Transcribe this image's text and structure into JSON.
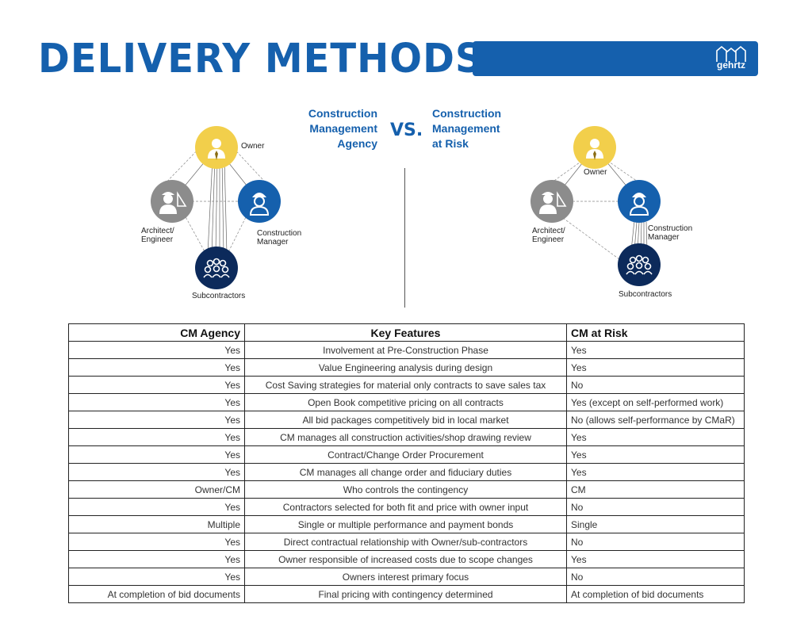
{
  "header": {
    "title": "DELIVERY METHODS",
    "logo_text": "gehrtz",
    "brand_color": "#1560ad"
  },
  "comparison": {
    "left_heading": [
      "Construction",
      "Management",
      "Agency"
    ],
    "vs": "VS.",
    "right_heading": [
      "Construction",
      "Management",
      "at Risk"
    ]
  },
  "left_diagram": {
    "owner": "Owner",
    "architect": [
      "Architect/",
      "Engineer"
    ],
    "cm": [
      "Construction",
      "Manager"
    ],
    "subs": "Subcontractors"
  },
  "right_diagram": {
    "owner": "Owner",
    "architect": [
      "Architect/",
      "Engineer"
    ],
    "cm": [
      "Construction",
      "Manager"
    ],
    "subs": "Subcontractors"
  },
  "colors": {
    "owner": "#f2cf4b",
    "architect": "#8c8c8c",
    "cm": "#1560ad",
    "subs": "#0c2a5b"
  },
  "table": {
    "headers": [
      "CM Agency",
      "Key Features",
      "CM at Risk"
    ],
    "rows": [
      [
        "Yes",
        "Involvement at Pre-Construction Phase",
        "Yes"
      ],
      [
        "Yes",
        "Value Engineering analysis during design",
        "Yes"
      ],
      [
        "Yes",
        "Cost Saving strategies for material only contracts to save sales tax",
        "No"
      ],
      [
        "Yes",
        "Open Book competitive pricing on all contracts",
        "Yes (except on self-performed work)"
      ],
      [
        "Yes",
        "All bid packages competitively bid in local market",
        "No (allows self-performance by CMaR)"
      ],
      [
        "Yes",
        "CM manages all construction activities/shop drawing review",
        "Yes"
      ],
      [
        "Yes",
        "Contract/Change Order Procurement",
        "Yes"
      ],
      [
        "Yes",
        "CM manages all change order and fiduciary duties",
        "Yes"
      ],
      [
        "Owner/CM",
        "Who controls the contingency",
        "CM"
      ],
      [
        "Yes",
        "Contractors selected for both fit and price with owner input",
        "No"
      ],
      [
        "Multiple",
        "Single or multiple performance and payment bonds",
        "Single"
      ],
      [
        "Yes",
        "Direct contractual relationship with Owner/sub-contractors",
        "No"
      ],
      [
        "Yes",
        "Owner responsible of increased costs due to scope changes",
        "Yes"
      ],
      [
        "Yes",
        "Owners interest primary focus",
        "No"
      ],
      [
        "At completion of bid documents",
        "Final pricing with contingency determined",
        "At completion of bid documents"
      ]
    ]
  }
}
